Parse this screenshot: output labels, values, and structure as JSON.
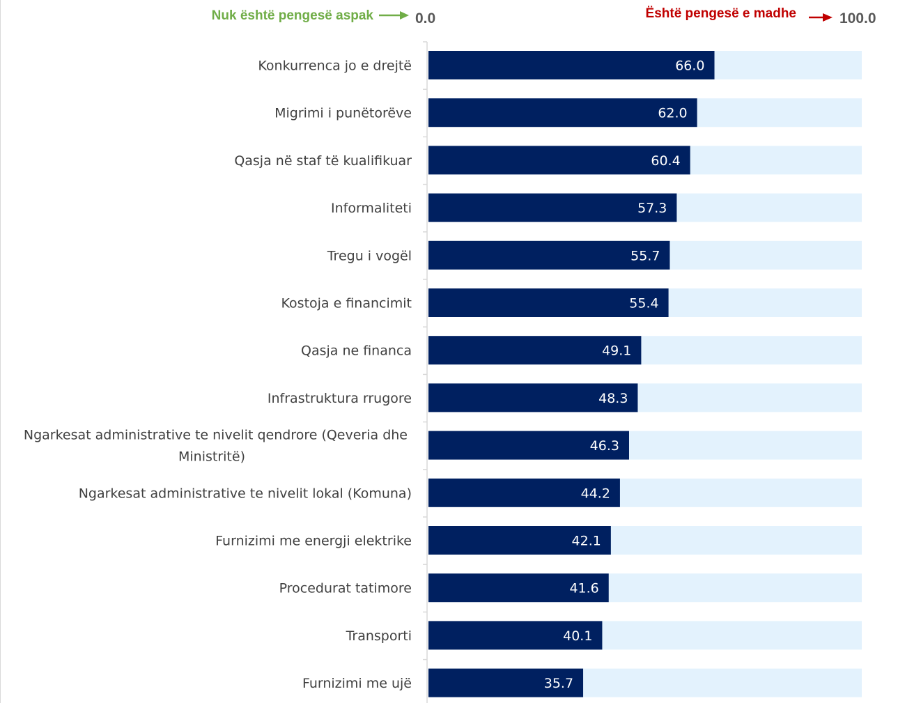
{
  "chart_data": {
    "type": "bar",
    "orientation": "horizontal",
    "categories": [
      "Konkurrenca jo e drejtë",
      "Migrimi i punëtorëve",
      "Qasja në staf të kualifikuar",
      "Informaliteti",
      "Tregu i vogël",
      "Kostoja e financimit",
      "Qasja ne financa",
      "Infrastruktura rrugore",
      "Ngarkesat administrative te nivelit qendrore (Qeveria dhe Ministritë)",
      "Ngarkesat administrative te nivelit lokal (Komuna)",
      "Furnizimi me energji elektrike",
      "Procedurat tatimore",
      "Transporti",
      "Furnizimi me ujë"
    ],
    "category_lines": [
      [
        "Konkurrenca jo e drejtë"
      ],
      [
        "Migrimi i punëtorëve"
      ],
      [
        "Qasja në staf të kualifikuar"
      ],
      [
        "Informaliteti"
      ],
      [
        "Tregu i vogël"
      ],
      [
        "Kostoja e financimit"
      ],
      [
        "Qasja ne financa"
      ],
      [
        "Infrastruktura rrugore"
      ],
      [
        "Ngarkesat administrative te nivelit qendrore (Qeveria dhe",
        "Ministritë)"
      ],
      [
        "Ngarkesat administrative te nivelit lokal (Komuna)"
      ],
      [
        "Furnizimi me energji elektrike"
      ],
      [
        "Procedurat tatimore"
      ],
      [
        "Transporti"
      ],
      [
        "Furnizimi me ujë"
      ]
    ],
    "values": [
      66.0,
      62.0,
      60.4,
      57.3,
      55.7,
      55.4,
      49.1,
      48.3,
      46.3,
      44.2,
      42.1,
      41.6,
      40.1,
      35.7
    ],
    "value_labels": [
      "66.0",
      "62.0",
      "60.4",
      "57.3",
      "55.7",
      "55.4",
      "49.1",
      "48.3",
      "46.3",
      "44.2",
      "42.1",
      "41.6",
      "40.1",
      "35.7"
    ],
    "xlim": [
      0,
      100
    ],
    "grid": false,
    "legend": {
      "min_text": "Nuk është pengesë aspak",
      "min_value": "0.0",
      "max_text": "Është pengesë e madhe",
      "max_value": "100.0"
    },
    "colors": {
      "bar": "#002060",
      "background_bar": "#e3f2fd",
      "min_text": "#70ad47",
      "min_arrow": "#70ad47",
      "max_text": "#c00000",
      "max_arrow": "#c00000",
      "axis": "#d9d9d9",
      "category_text": "#404040",
      "value_text": "#ffffff"
    }
  }
}
